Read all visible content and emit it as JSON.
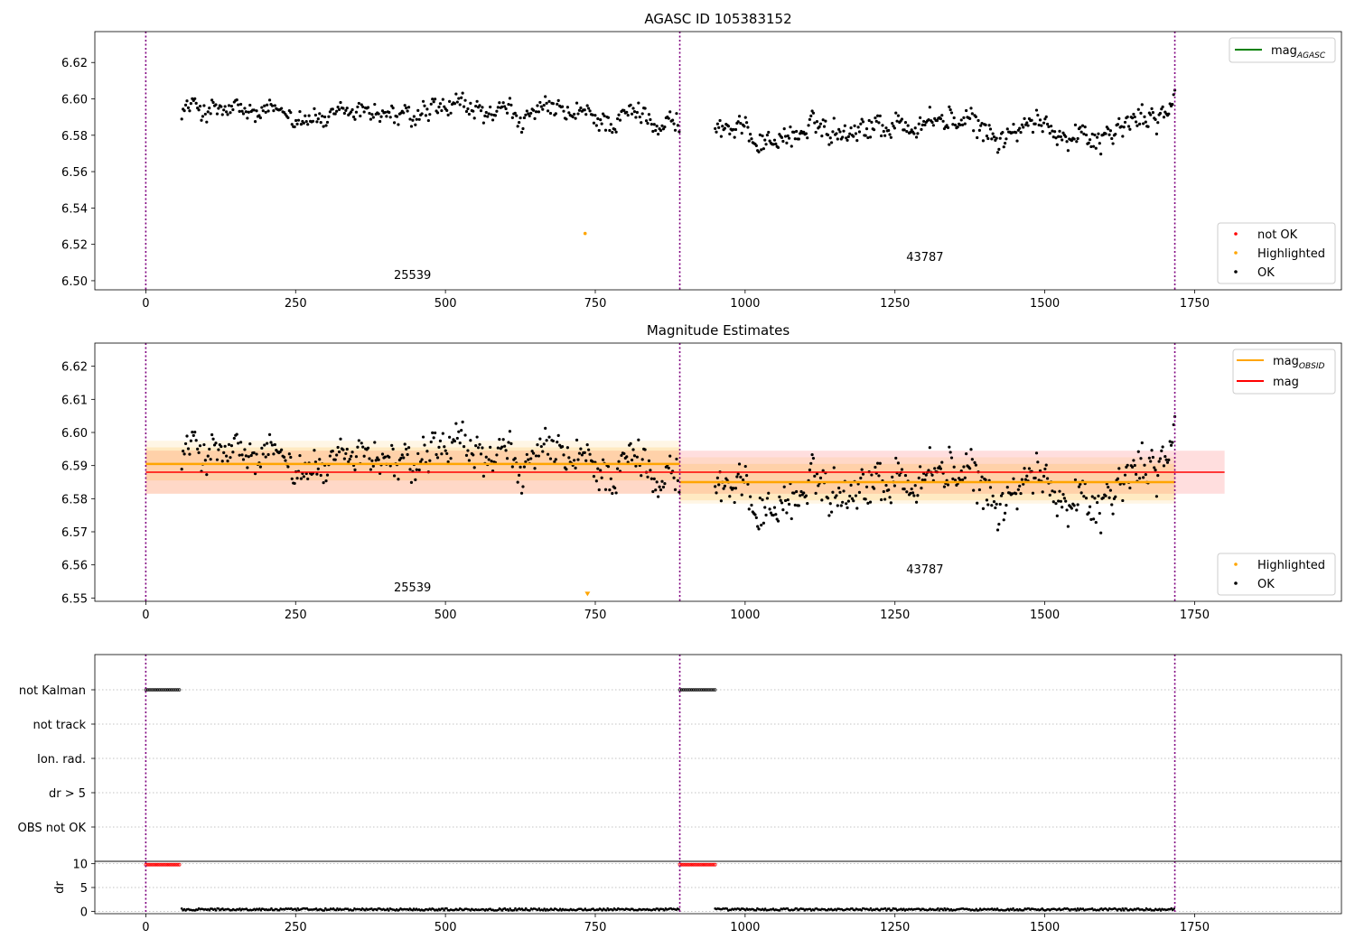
{
  "chart_data": [
    {
      "type": "scatter",
      "title": "AGASC ID 105383152",
      "xlim": [
        -85,
        1995
      ],
      "ylim": [
        6.495,
        6.637
      ],
      "xticks": [
        0,
        250,
        500,
        750,
        1000,
        1250,
        1500,
        1750
      ],
      "yticks": [
        6.5,
        6.52,
        6.54,
        6.56,
        6.58,
        6.6,
        6.62
      ],
      "vlines": [
        0,
        891,
        1717
      ],
      "series": [
        {
          "name": "OK",
          "color": "#000000",
          "segments": [
            {
              "x_start": 60,
              "x_end": 890,
              "count": 380,
              "knots": [
                [
                  60,
                  6.596
                ],
                [
                  120,
                  6.593
                ],
                [
                  200,
                  6.589
                ],
                [
                  260,
                  6.594
                ],
                [
                  320,
                  6.586
                ],
                [
                  380,
                  6.595
                ],
                [
                  440,
                  6.587
                ],
                [
                  520,
                  6.593
                ],
                [
                  600,
                  6.589
                ],
                [
                  680,
                  6.591
                ],
                [
                  760,
                  6.588
                ],
                [
                  840,
                  6.592
                ],
                [
                  890,
                  6.587
                ]
              ],
              "spread": 0.011
            },
            {
              "x_start": 950,
              "x_end": 1717,
              "count": 380,
              "knots": [
                [
                  950,
                  6.585
                ],
                [
                  1040,
                  6.578
                ],
                [
                  1120,
                  6.583
                ],
                [
                  1200,
                  6.587
                ],
                [
                  1280,
                  6.586
                ],
                [
                  1340,
                  6.589
                ],
                [
                  1420,
                  6.579
                ],
                [
                  1500,
                  6.585
                ],
                [
                  1580,
                  6.581
                ],
                [
                  1640,
                  6.585
                ],
                [
                  1717,
                  6.597
                ]
              ],
              "spread": 0.012
            }
          ]
        },
        {
          "name": "Highlighted",
          "color": "#ffa500",
          "points": [
            [
              733,
              6.526
            ]
          ]
        },
        {
          "name": "not OK",
          "color": "#ff0000",
          "points": []
        }
      ],
      "lines": [
        {
          "name": "mag",
          "subscript": "AGASC",
          "color": "#008000"
        }
      ],
      "annotations": [
        {
          "text": "25539",
          "x": 445,
          "y": 6.501
        },
        {
          "text": "43787",
          "x": 1300,
          "y": 6.511
        }
      ],
      "legends": {
        "upper_right": [
          "mag_AGASC"
        ],
        "lower_right": [
          "not OK",
          "Highlighted",
          "OK"
        ]
      }
    },
    {
      "type": "scatter",
      "title": "Magnitude Estimates",
      "xlim": [
        -85,
        1995
      ],
      "ylim": [
        6.549,
        6.627
      ],
      "xticks": [
        0,
        250,
        500,
        750,
        1000,
        1250,
        1500,
        1750
      ],
      "yticks": [
        6.55,
        6.56,
        6.57,
        6.58,
        6.59,
        6.6,
        6.61,
        6.62
      ],
      "vlines": [
        0,
        891,
        1717
      ],
      "bands": [
        {
          "x": [
            0,
            1800
          ],
          "y": [
            6.5815,
            6.5945
          ],
          "color": "#ff0000",
          "opacity": 0.13
        },
        {
          "x": [
            0,
            891
          ],
          "y": [
            6.5855,
            6.5955
          ],
          "color": "#ffa500",
          "opacity": 0.15
        },
        {
          "x": [
            0,
            891
          ],
          "y": [
            6.5815,
            6.5975
          ],
          "color": "#ffa500",
          "opacity": 0.1
        },
        {
          "x": [
            891,
            1717
          ],
          "y": [
            6.5795,
            6.5905
          ],
          "color": "#ffa500",
          "opacity": 0.15
        },
        {
          "x": [
            891,
            1717
          ],
          "y": [
            6.5785,
            6.5925
          ],
          "color": "#ffa500",
          "opacity": 0.1
        }
      ],
      "hlines": [
        {
          "name": "mag",
          "subscript": "OBSID",
          "color": "#ffa500",
          "segments": [
            [
              0,
              891,
              6.5905
            ],
            [
              891,
              1717,
              6.585
            ]
          ]
        },
        {
          "name": "mag",
          "color": "#ff0000",
          "segments": [
            [
              0,
              1800,
              6.588
            ]
          ]
        }
      ],
      "series": [
        {
          "name": "OK",
          "color": "#000000",
          "reuse": "top"
        },
        {
          "name": "Highlighted",
          "color": "#ffa500",
          "marker": "triangle-down",
          "points": [
            [
              737,
              6.55
            ]
          ]
        }
      ],
      "annotations": [
        {
          "text": "25539",
          "x": 445,
          "y": 6.552
        },
        {
          "text": "43787",
          "x": 1300,
          "y": 6.5575
        }
      ],
      "legends": {
        "upper_right": [
          "mag_OBSID",
          "mag"
        ],
        "lower_right": [
          "Highlighted",
          "OK"
        ]
      }
    },
    {
      "type": "scatter",
      "xlim": [
        -85,
        1995
      ],
      "xticks": [
        0,
        250,
        500,
        750,
        1000,
        1250,
        1500,
        1750
      ],
      "vlines": [
        0,
        891,
        1717
      ],
      "categories": [
        "not Kalman",
        "not track",
        "Ion. rad.",
        "dr > 5",
        "OBS not OK"
      ],
      "flags": [
        {
          "category": "not Kalman",
          "ranges": [
            [
              0,
              58
            ],
            [
              891,
              950
            ]
          ],
          "color": "#000000"
        }
      ]
    },
    {
      "type": "line",
      "ylabel": "dr",
      "xlim": [
        -85,
        1995
      ],
      "ylim": [
        -0.5,
        10.5
      ],
      "yticks": [
        0,
        5,
        10
      ],
      "xticks": [
        0,
        250,
        500,
        750,
        1000,
        1250,
        1500,
        1750
      ],
      "vlines": [
        0,
        891,
        1717
      ],
      "series": [
        {
          "name": "dr",
          "color": "#000000",
          "segments": [
            [
              60,
              890
            ],
            [
              950,
              1717
            ]
          ],
          "level": 0.3
        },
        {
          "name": "dr capped",
          "color": "#ff0000",
          "ranges": [
            [
              0,
              58
            ],
            [
              891,
              950
            ]
          ],
          "value": 9.8
        }
      ]
    }
  ]
}
